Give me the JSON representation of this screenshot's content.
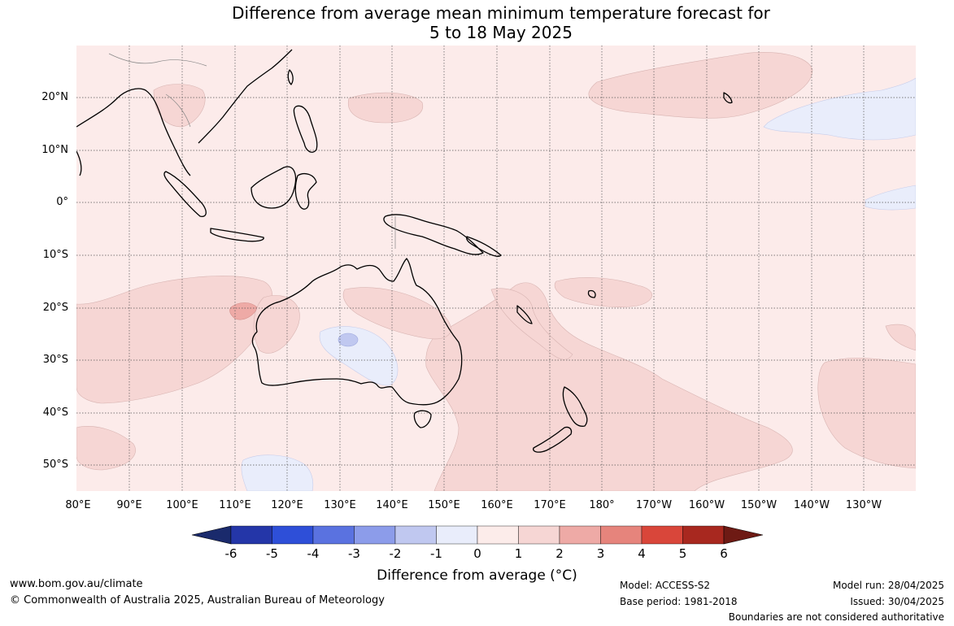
{
  "title": {
    "line1": "Difference from average mean minimum temperature forecast for",
    "line2": "5 to 18 May 2025"
  },
  "map": {
    "lon_range": [
      "80°E",
      "130°W"
    ],
    "lat_range": [
      "30°N",
      "55°S"
    ],
    "grid": true,
    "lat_labels": [
      "20°N",
      "10°N",
      "0°",
      "10°S",
      "20°S",
      "30°S",
      "40°S",
      "50°S"
    ],
    "lon_labels": [
      "80°E",
      "90°E",
      "100°E",
      "110°E",
      "120°E",
      "130°E",
      "140°E",
      "150°E",
      "160°E",
      "170°E",
      "180°",
      "170°W",
      "160°W",
      "150°W",
      "140°W",
      "130°W"
    ],
    "colors": {
      "base_0_to_1": "#fcebea",
      "anomaly_1_to_2": "#f6d6d4",
      "anomaly_2_to_3": "#eeaaa6",
      "anomaly_m1_to_0": "#e9edfb",
      "anomaly_m2_to_m1": "#c0c8f0",
      "coastline": "#000000",
      "borders": "#888888"
    }
  },
  "colorbar": {
    "tick_labels": [
      "-6",
      "-5",
      "-4",
      "-3",
      "-2",
      "-1",
      "0",
      "1",
      "2",
      "3",
      "4",
      "5",
      "6"
    ],
    "colors": [
      "#1a2a6c",
      "#2436a8",
      "#2e4fd8",
      "#5a72e0",
      "#8c9cea",
      "#c0c8f0",
      "#e9edfb",
      "#fcecea",
      "#f6d6d4",
      "#eeaaa6",
      "#e6847c",
      "#d9463a",
      "#a8281f",
      "#6e1a14"
    ],
    "title": "Difference from average (°C)"
  },
  "footer": {
    "url": "www.bom.gov.au/climate",
    "copyright": "© Commonwealth of Australia 2025, Australian Bureau of Meteorology",
    "model": "Model: ACCESS-S2",
    "base_period": "Base period: 1981-2018",
    "model_run": "Model run: 28/04/2025",
    "issued": "Issued: 30/04/2025",
    "disclaimer": "Boundaries are not considered authoritative"
  }
}
